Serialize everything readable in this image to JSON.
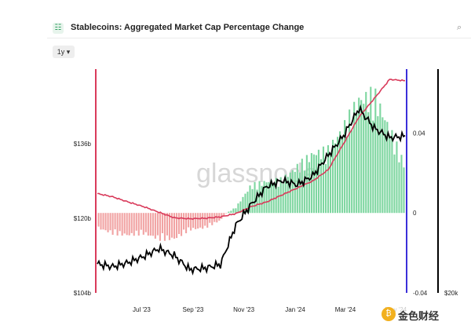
{
  "header": {
    "title": "Stablecoins: Aggregated Market Cap Percentage Change",
    "icon": "chart-list-icon",
    "zoom_icon": "zoom-icon"
  },
  "controls": {
    "range_label": "1y ▾"
  },
  "watermark": "glassnode",
  "footer_brand": {
    "logo_icon": "coin-logo-icon",
    "text": "金色财经"
  },
  "colors": {
    "positive_bar": "#7ed6a0",
    "negative_bar": "#f1a3a3",
    "price_line": "#000000",
    "ma_line": "#d93b5b",
    "left_axis_line": "#d93b5b",
    "right_axis_line": "#3b2fd9",
    "far_axis_line": "#000000"
  },
  "chart_data": {
    "type": "bar",
    "x_ticks": [
      "Jul '23",
      "Sep '23",
      "Nov '23",
      "Jan '24",
      "Mar '24",
      "May '24"
    ],
    "left_axis": {
      "ticks": [
        "$104b",
        "$120b",
        "$136b"
      ],
      "values": [
        104,
        120,
        136
      ],
      "range": [
        104,
        152
      ]
    },
    "right_axis": {
      "ticks": [
        "-0.04",
        "0",
        "0.04"
      ],
      "values": [
        -0.04,
        0,
        0.04
      ],
      "range": [
        -0.04,
        0.072
      ]
    },
    "far_axis": {
      "ticks": [
        "$20k"
      ]
    },
    "series": [
      {
        "kind": "bar",
        "x_index": [
          0,
          0.05,
          0.1,
          0.15,
          0.2,
          0.25,
          0.3,
          0.35,
          0.4,
          0.42,
          0.45,
          0.5,
          0.55,
          0.6,
          0.65,
          0.7,
          0.75,
          0.8,
          0.85,
          0.9,
          0.95,
          1
        ],
        "values": [
          -0.008,
          -0.011,
          -0.012,
          -0.011,
          -0.014,
          -0.014,
          -0.009,
          -0.008,
          -0.004,
          0.0,
          0.003,
          0.015,
          0.017,
          0.018,
          0.025,
          0.032,
          0.034,
          0.046,
          0.061,
          0.064,
          0.045,
          0.025
        ]
      },
      {
        "kind": "line",
        "axis": "left",
        "x_index": [
          0,
          0.05,
          0.1,
          0.15,
          0.2,
          0.25,
          0.3,
          0.35,
          0.4,
          0.45,
          0.5,
          0.55,
          0.6,
          0.65,
          0.7,
          0.75,
          0.8,
          0.85,
          0.9,
          0.95,
          1
        ],
        "values": [
          125.3,
          124.6,
          123.5,
          122.5,
          121.3,
          120.1,
          119.9,
          120.0,
          120.3,
          121.0,
          122.5,
          123.5,
          125.0,
          126.5,
          128.0,
          130.4,
          136.0,
          141.7,
          145.7,
          149.8,
          149.5
        ]
      },
      {
        "kind": "line",
        "axis": "left",
        "x_index": [
          0,
          0.05,
          0.1,
          0.15,
          0.2,
          0.25,
          0.3,
          0.35,
          0.4,
          0.45,
          0.5,
          0.55,
          0.6,
          0.65,
          0.7,
          0.75,
          0.8,
          0.85,
          0.9,
          0.95,
          1
        ],
        "values": [
          110.2,
          109.6,
          110.5,
          111.8,
          113.5,
          112.0,
          109.0,
          109.3,
          110.1,
          118.5,
          123.0,
          126.8,
          128.1,
          127.2,
          129.1,
          133.5,
          137.7,
          143.5,
          139.3,
          137.3,
          137.6
        ]
      }
    ]
  }
}
